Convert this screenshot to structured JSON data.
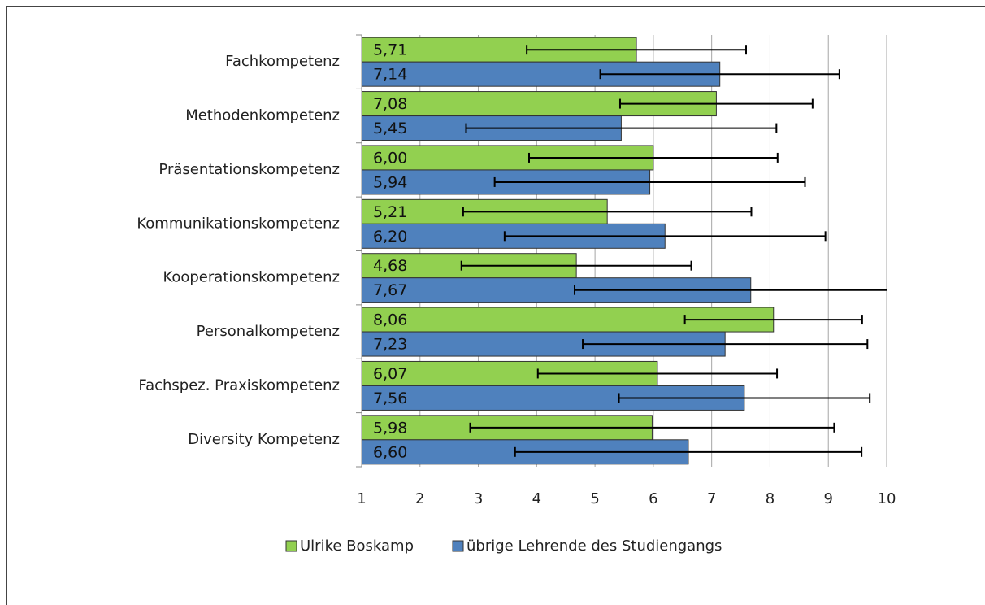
{
  "chart_data": {
    "type": "barh",
    "categories": [
      "Fachkompetenz",
      "Methodenkompetenz",
      "Präsentationskompetenz",
      "Kommunikationskompetenz",
      "Kooperationskompetenz",
      "Personalkompetenz",
      "Fachspez. Praxiskompetenz",
      "Diversity Kompetenz"
    ],
    "series": [
      {
        "name": "Ulrike Boskamp",
        "color": "#92d050",
        "values": [
          5.71,
          7.08,
          6.0,
          5.21,
          4.68,
          8.06,
          6.07,
          5.98
        ],
        "value_labels": [
          "5,71",
          "7,08",
          "6,00",
          "5,21",
          "4,68",
          "8,06",
          "6,07",
          "5,98"
        ],
        "errors": [
          1.88,
          1.65,
          2.13,
          2.47,
          1.97,
          1.52,
          2.05,
          3.12
        ]
      },
      {
        "name": "übrige Lehrende des Studiengangs",
        "color": "#4f81bd",
        "values": [
          7.14,
          5.45,
          5.94,
          6.2,
          7.67,
          7.23,
          7.56,
          6.6
        ],
        "value_labels": [
          "7,14",
          "5,45",
          "5,94",
          "6,20",
          "7,67",
          "7,23",
          "7,56",
          "6,60"
        ],
        "errors": [
          2.05,
          2.66,
          2.66,
          2.75,
          3.02,
          2.44,
          2.15,
          2.97
        ]
      }
    ],
    "xlim": [
      1,
      10
    ],
    "xticks": [
      1,
      2,
      3,
      4,
      5,
      6,
      7,
      8,
      9,
      10
    ],
    "grid": true,
    "legend": "bottom"
  }
}
